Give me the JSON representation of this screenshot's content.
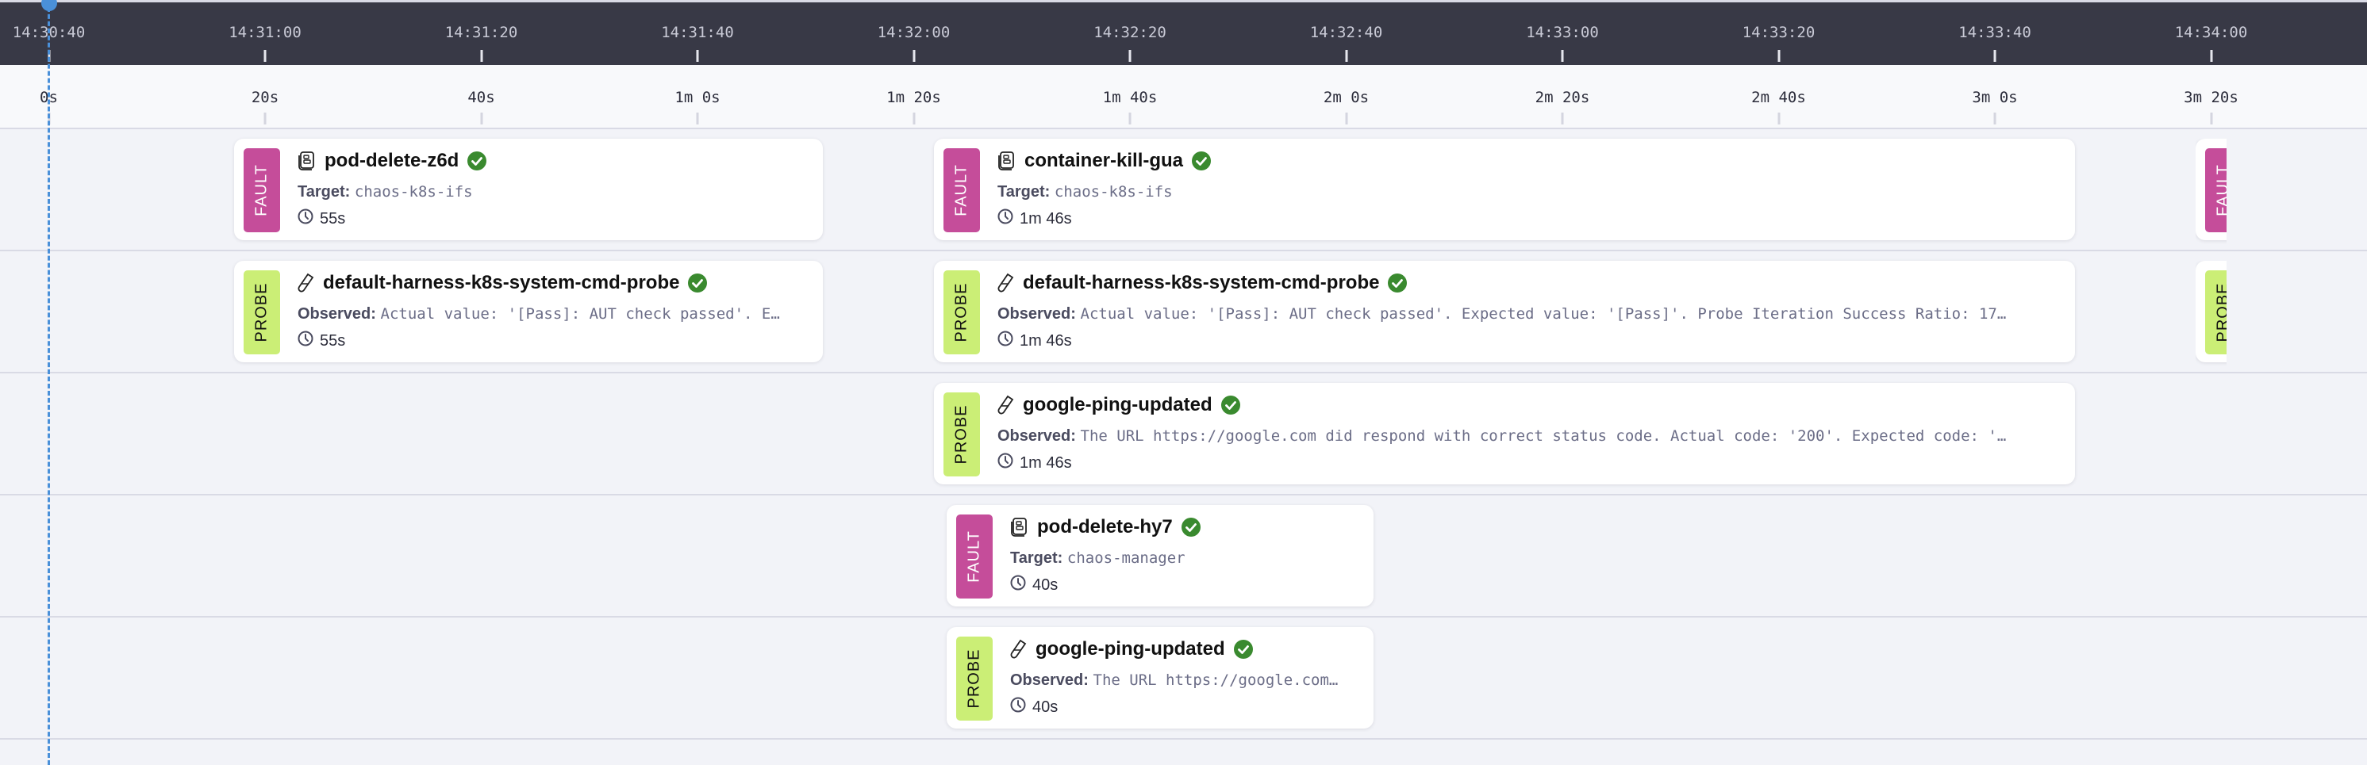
{
  "header": {
    "clock_ticks": [
      "14:30:40",
      "14:31:00",
      "14:31:20",
      "14:31:40",
      "14:32:00",
      "14:32:20",
      "14:32:40",
      "14:33:00",
      "14:33:20",
      "14:33:40",
      "14:34:00"
    ],
    "elapsed_ticks": [
      "0s",
      "20s",
      "40s",
      "1m 0s",
      "1m 20s",
      "1m 40s",
      "2m 0s",
      "2m 20s",
      "2m 40s",
      "3m 0s",
      "3m 20s"
    ]
  },
  "labels": {
    "target": "Target:",
    "observed": "Observed:"
  },
  "colors": {
    "fault": "#c54d9a",
    "probe": "#cbee76",
    "success": "#3a8a2f",
    "cursor": "#4a90d9",
    "header_bg": "#383946"
  },
  "cards": [
    {
      "kind": "FAULT",
      "name": "pod-delete-z6d",
      "detail": "chaos-k8s-ifs",
      "duration": "55s",
      "status": "success",
      "icon": "fault-icon"
    },
    {
      "kind": "FAULT",
      "name": "container-kill-gua",
      "detail": "chaos-k8s-ifs",
      "duration": "1m 46s",
      "status": "success",
      "icon": "fault-icon"
    },
    {
      "kind": "FAULT",
      "icon": "fault-icon"
    },
    {
      "kind": "PROBE",
      "name": "default-harness-k8s-system-cmd-probe",
      "detail": "Actual value: '[Pass]: AUT check passed'. E…",
      "duration": "55s",
      "status": "success",
      "icon": "probe-icon"
    },
    {
      "kind": "PROBE",
      "name": "default-harness-k8s-system-cmd-probe",
      "detail": "Actual value: '[Pass]: AUT check passed'. Expected value: '[Pass]'. Probe Iteration Success Ratio: 17…",
      "duration": "1m 46s",
      "status": "success",
      "icon": "probe-icon"
    },
    {
      "kind": "PROBE",
      "icon": "probe-icon"
    },
    {
      "kind": "PROBE",
      "name": "google-ping-updated",
      "detail": "The URL https://google.com did respond with correct status code. Actual code: '200'. Expected code: '…",
      "duration": "1m 46s",
      "status": "success",
      "icon": "probe-icon"
    },
    {
      "kind": "FAULT",
      "name": "pod-delete-hy7",
      "detail": "chaos-manager",
      "duration": "40s",
      "status": "success",
      "icon": "fault-icon"
    },
    {
      "kind": "PROBE",
      "name": "google-ping-updated",
      "detail": "The URL https://google.com…",
      "duration": "40s",
      "status": "success",
      "icon": "probe-icon"
    }
  ]
}
